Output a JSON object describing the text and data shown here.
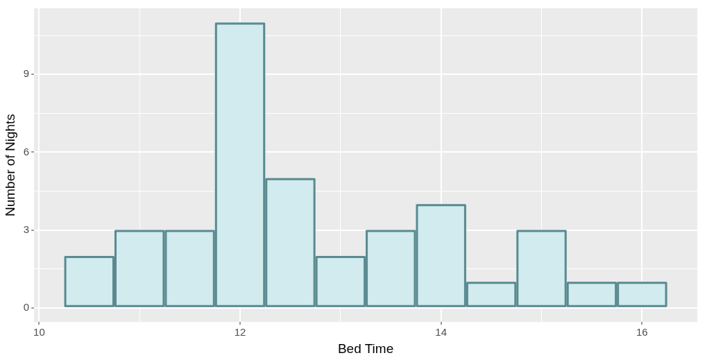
{
  "chart_data": {
    "type": "histogram",
    "xlabel": "Bed Time",
    "ylabel": "Number of Nights",
    "bins": [
      10.25,
      10.75,
      11.25,
      11.75,
      12.25,
      12.75,
      13.25,
      13.75,
      14.25,
      14.75,
      15.25,
      15.75,
      16.25
    ],
    "values": [
      2,
      3,
      3,
      11,
      5,
      2,
      3,
      4,
      1,
      3,
      1,
      1
    ],
    "color": "#d1ebee",
    "xlim": [
      9.95,
      16.55
    ],
    "xticks": [
      10,
      {
        "value": 11,
        "label": null
      },
      12,
      {
        "value": 13,
        "label": null
      },
      14,
      {
        "value": 15,
        "label": null
      },
      16
    ],
    "ylim": [
      -0.55,
      11.55
    ],
    "yticks": [
      0,
      {
        "value": 1.5,
        "label": null
      },
      3,
      {
        "value": 4.5,
        "label": null
      },
      6,
      {
        "value": 7.5,
        "label": null
      },
      9,
      {
        "value": 10.5,
        "label": null
      }
    ],
    "grid": true
  }
}
